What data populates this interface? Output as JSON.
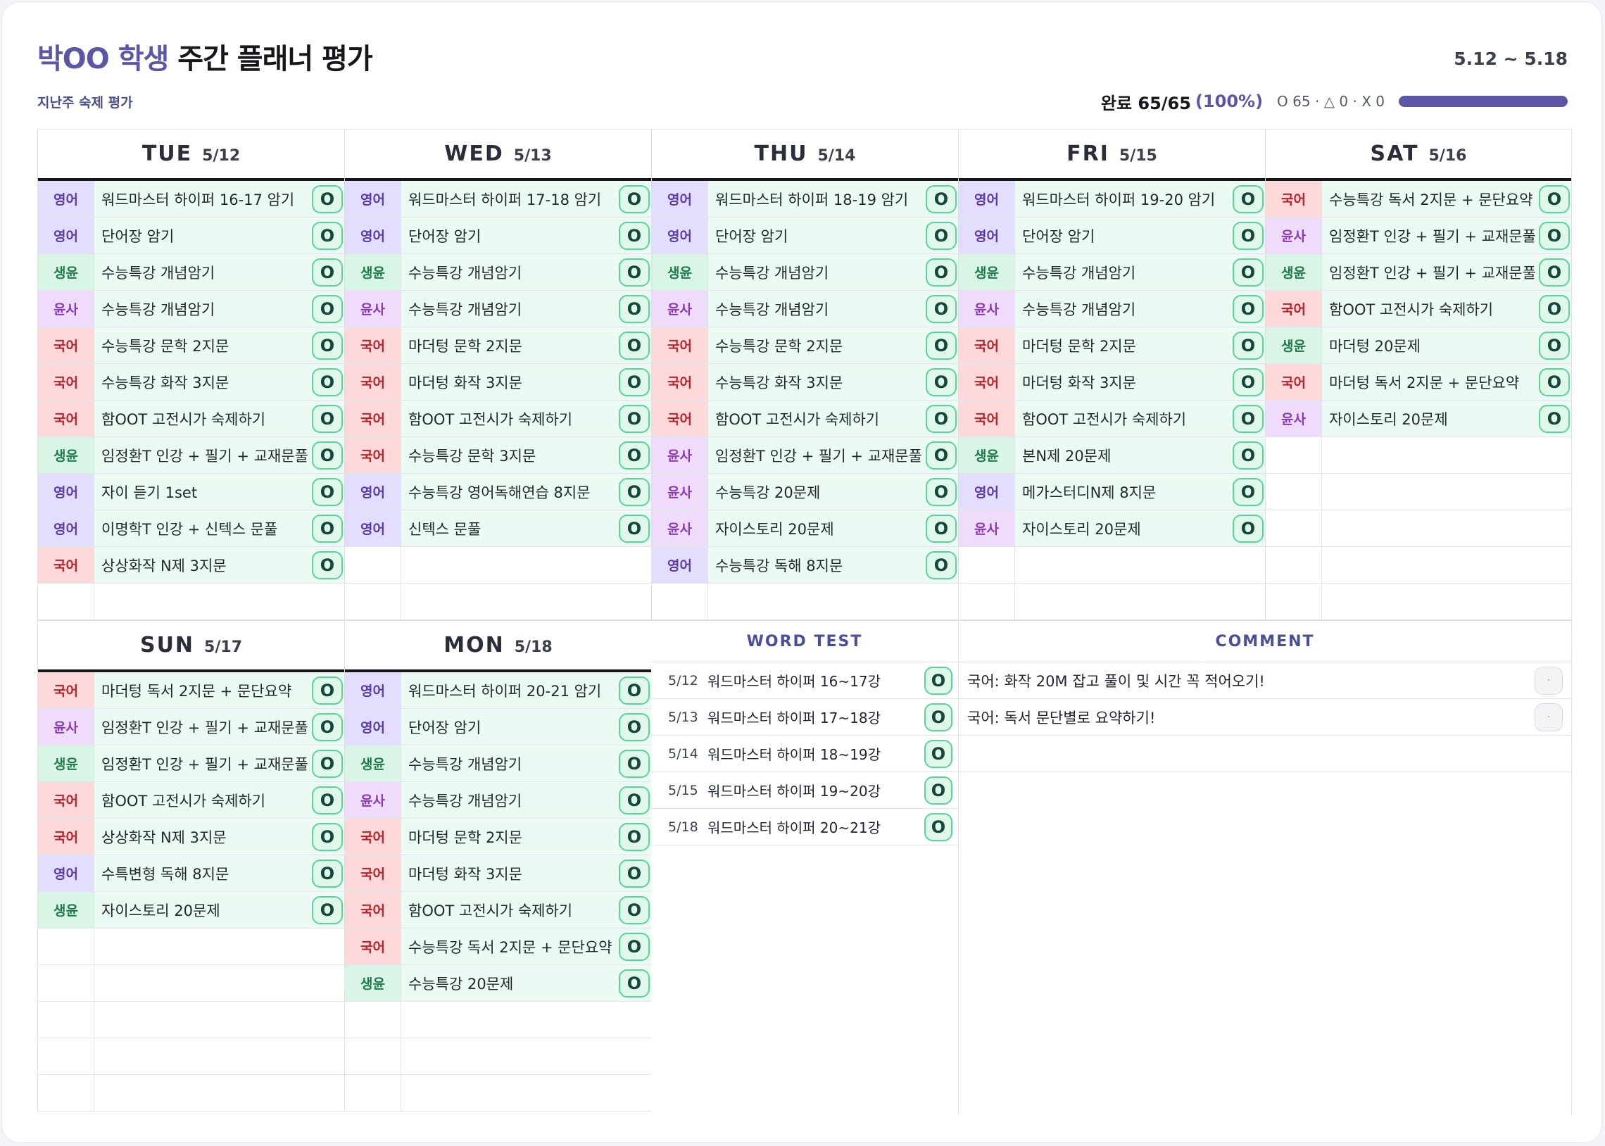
{
  "header": {
    "student": "박OO 학생",
    "title_rest": "주간 플래너 평가",
    "range": "5.12 ~ 5.18",
    "subtitle": "지난주 숙제 평가",
    "done_label": "완료 65/65",
    "done_pct": "(100%)",
    "counts": "O 65 · △ 0 · X 0",
    "progress": 1.0
  },
  "subject_colors": {
    "영어": "#5a3aa8",
    "국어": "#b8222a",
    "생윤": "#1e7a4c",
    "윤사": "#8a3ab5"
  },
  "days": [
    {
      "name": "TUE",
      "date": "5/12",
      "rows": 12,
      "tasks": [
        {
          "subject": "영어",
          "task": "워드마스터 하이퍼 16-17 암기",
          "status": "O"
        },
        {
          "subject": "영어",
          "task": "단어장 암기",
          "status": "O"
        },
        {
          "subject": "생윤",
          "task": "수능특강 개념암기",
          "status": "O"
        },
        {
          "subject": "윤사",
          "task": "수능특강 개념암기",
          "status": "O"
        },
        {
          "subject": "국어",
          "task": "수능특강 문학 2지문",
          "status": "O"
        },
        {
          "subject": "국어",
          "task": "수능특강 화작 3지문",
          "status": "O"
        },
        {
          "subject": "국어",
          "task": "함OOT 고전시가 숙제하기",
          "status": "O"
        },
        {
          "subject": "생윤",
          "task": "임정환T 인강 + 필기 + 교재문풀",
          "status": "O"
        },
        {
          "subject": "영어",
          "task": "자이 듣기 1set",
          "status": "O"
        },
        {
          "subject": "영어",
          "task": "이명학T 인강 + 신텍스 문풀",
          "status": "O"
        },
        {
          "subject": "국어",
          "task": "상상화작 N제 3지문",
          "status": "O"
        }
      ]
    },
    {
      "name": "WED",
      "date": "5/13",
      "rows": 12,
      "tasks": [
        {
          "subject": "영어",
          "task": "워드마스터 하이퍼 17-18 암기",
          "status": "O"
        },
        {
          "subject": "영어",
          "task": "단어장 암기",
          "status": "O"
        },
        {
          "subject": "생윤",
          "task": "수능특강 개념암기",
          "status": "O"
        },
        {
          "subject": "윤사",
          "task": "수능특강 개념암기",
          "status": "O"
        },
        {
          "subject": "국어",
          "task": "마더텅 문학 2지문",
          "status": "O"
        },
        {
          "subject": "국어",
          "task": "마더텅 화작 3지문",
          "status": "O"
        },
        {
          "subject": "국어",
          "task": "함OOT 고전시가 숙제하기",
          "status": "O"
        },
        {
          "subject": "국어",
          "task": "수능특강 문학 3지문",
          "status": "O"
        },
        {
          "subject": "영어",
          "task": "수능특강 영어독해연습 8지문",
          "status": "O"
        },
        {
          "subject": "영어",
          "task": "신텍스 문풀",
          "status": "O"
        }
      ]
    },
    {
      "name": "THU",
      "date": "5/14",
      "rows": 12,
      "tasks": [
        {
          "subject": "영어",
          "task": "워드마스터 하이퍼 18-19 암기",
          "status": "O"
        },
        {
          "subject": "영어",
          "task": "단어장 암기",
          "status": "O"
        },
        {
          "subject": "생윤",
          "task": "수능특강 개념암기",
          "status": "O"
        },
        {
          "subject": "윤사",
          "task": "수능특강 개념암기",
          "status": "O"
        },
        {
          "subject": "국어",
          "task": "수능특강 문학 2지문",
          "status": "O"
        },
        {
          "subject": "국어",
          "task": "수능특강 화작 3지문",
          "status": "O"
        },
        {
          "subject": "국어",
          "task": "함OOT 고전시가 숙제하기",
          "status": "O"
        },
        {
          "subject": "윤사",
          "task": "임정환T 인강 + 필기 + 교재문풀",
          "status": "O"
        },
        {
          "subject": "윤사",
          "task": "수능특강 20문제",
          "status": "O"
        },
        {
          "subject": "윤사",
          "task": "자이스토리 20문제",
          "status": "O"
        },
        {
          "subject": "영어",
          "task": "수능특강 독해 8지문",
          "status": "O"
        }
      ]
    },
    {
      "name": "FRI",
      "date": "5/15",
      "rows": 12,
      "tasks": [
        {
          "subject": "영어",
          "task": "워드마스터 하이퍼 19-20 암기",
          "status": "O"
        },
        {
          "subject": "영어",
          "task": "단어장 암기",
          "status": "O"
        },
        {
          "subject": "생윤",
          "task": "수능특강 개념암기",
          "status": "O"
        },
        {
          "subject": "윤사",
          "task": "수능특강 개념암기",
          "status": "O"
        },
        {
          "subject": "국어",
          "task": "마더텅 문학 2지문",
          "status": "O"
        },
        {
          "subject": "국어",
          "task": "마더텅 화작 3지문",
          "status": "O"
        },
        {
          "subject": "국어",
          "task": "함OOT 고전시가 숙제하기",
          "status": "O"
        },
        {
          "subject": "생윤",
          "task": "본N제 20문제",
          "status": "O"
        },
        {
          "subject": "영어",
          "task": "메가스터디N제 8지문",
          "status": "O"
        },
        {
          "subject": "윤사",
          "task": "자이스토리 20문제",
          "status": "O"
        }
      ]
    },
    {
      "name": "SAT",
      "date": "5/16",
      "rows": 12,
      "tasks": [
        {
          "subject": "국어",
          "task": "수능특강 독서 2지문 + 문단요약",
          "status": "O"
        },
        {
          "subject": "윤사",
          "task": "임정환T 인강 + 필기 + 교재문풀",
          "status": "O"
        },
        {
          "subject": "생윤",
          "task": "임정환T 인강 + 필기 + 교재문풀",
          "status": "O"
        },
        {
          "subject": "국어",
          "task": "함OOT 고전시가 숙제하기",
          "status": "O"
        },
        {
          "subject": "생윤",
          "task": "마더텅 20문제",
          "status": "O"
        },
        {
          "subject": "국어",
          "task": "마더텅 독서 2지문 + 문단요약",
          "status": "O"
        },
        {
          "subject": "윤사",
          "task": "자이스토리 20문제",
          "status": "O"
        }
      ]
    },
    {
      "name": "SUN",
      "date": "5/17",
      "rows": 12,
      "tasks": [
        {
          "subject": "국어",
          "task": "마더텅 독서 2지문 + 문단요약",
          "status": "O"
        },
        {
          "subject": "윤사",
          "task": "임정환T 인강 + 필기 + 교재문풀",
          "status": "O"
        },
        {
          "subject": "생윤",
          "task": "임정환T 인강 + 필기 + 교재문풀",
          "status": "O"
        },
        {
          "subject": "국어",
          "task": "함OOT 고전시가 숙제하기",
          "status": "O"
        },
        {
          "subject": "국어",
          "task": "상상화작 N제 3지문",
          "status": "O"
        },
        {
          "subject": "영어",
          "task": "수특변형 독해 8지문",
          "status": "O"
        },
        {
          "subject": "생윤",
          "task": "자이스토리 20문제",
          "status": "O"
        }
      ]
    },
    {
      "name": "MON",
      "date": "5/18",
      "rows": 12,
      "tasks": [
        {
          "subject": "영어",
          "task": "워드마스터 하이퍼 20-21  암기",
          "status": "O"
        },
        {
          "subject": "영어",
          "task": "단어장 암기",
          "status": "O"
        },
        {
          "subject": "생윤",
          "task": "수능특강 개념암기",
          "status": "O"
        },
        {
          "subject": "윤사",
          "task": "수능특강 개념암기",
          "status": "O"
        },
        {
          "subject": "국어",
          "task": "마더텅 문학 2지문",
          "status": "O"
        },
        {
          "subject": "국어",
          "task": "마더텅 화작 3지문",
          "status": "O"
        },
        {
          "subject": "국어",
          "task": "함OOT 고전시가 숙제하기",
          "status": "O"
        },
        {
          "subject": "국어",
          "task": "수능특강 독서 2지문 + 문단요약",
          "status": "O"
        },
        {
          "subject": "생윤",
          "task": "수능특강 20문제",
          "status": "O"
        }
      ]
    }
  ],
  "word_test": {
    "title": "WORD TEST",
    "items": [
      {
        "date": "5/12",
        "task": "워드마스터 하이퍼 16~17강",
        "status": "O"
      },
      {
        "date": "5/13",
        "task": "워드마스터 하이퍼 17~18강",
        "status": "O"
      },
      {
        "date": "5/14",
        "task": "워드마스터 하이퍼 18~19강",
        "status": "O"
      },
      {
        "date": "5/15",
        "task": "워드마스터 하이퍼 19~20강",
        "status": "O"
      },
      {
        "date": "5/18",
        "task": "워드마스터 하이퍼 20~21강",
        "status": "O"
      }
    ]
  },
  "comment": {
    "title": "COMMENT",
    "items": [
      {
        "text": "국어: 화작 20M 잡고 풀이 및 시간 꼭 적어오기!",
        "button": "·"
      },
      {
        "text": "국어: 독서 문단별로 요약하기!",
        "button": "·"
      }
    ]
  }
}
